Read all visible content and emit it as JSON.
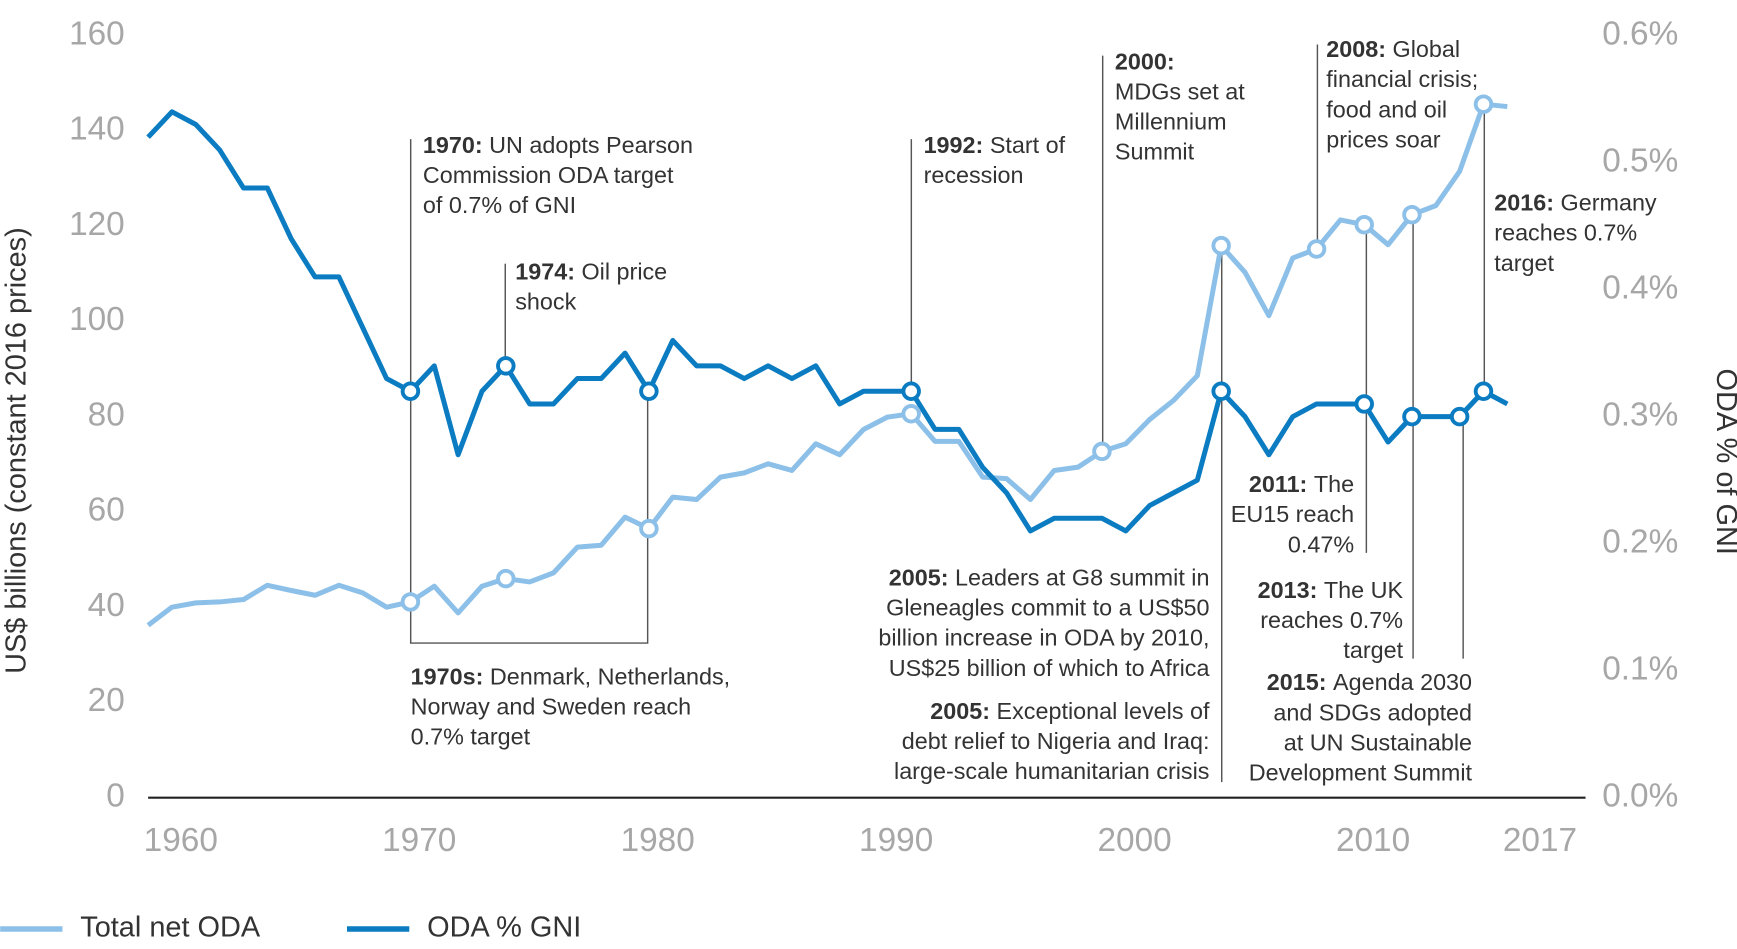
{
  "chart_data": {
    "type": "line",
    "x": [
      1960,
      1961,
      1962,
      1963,
      1964,
      1965,
      1966,
      1967,
      1968,
      1969,
      1970,
      1971,
      1972,
      1973,
      1974,
      1975,
      1976,
      1977,
      1978,
      1979,
      1980,
      1981,
      1982,
      1983,
      1984,
      1985,
      1986,
      1987,
      1988,
      1989,
      1990,
      1991,
      1992,
      1993,
      1994,
      1995,
      1996,
      1997,
      1998,
      1999,
      2000,
      2001,
      2002,
      2003,
      2004,
      2005,
      2006,
      2007,
      2008,
      2009,
      2010,
      2011,
      2012,
      2013,
      2014,
      2015,
      2016,
      2017
    ],
    "xlim": [
      1960,
      2020
    ],
    "xticks": [
      1960,
      1970,
      1980,
      1990,
      2000,
      2010,
      2017
    ],
    "ylim": [
      0,
      160
    ],
    "yticks": [
      0,
      20,
      40,
      60,
      80,
      100,
      120,
      140,
      160
    ],
    "y2lim": [
      0,
      0.6
    ],
    "y2ticks": [
      {
        "value": 0,
        "label": "0.0%"
      },
      {
        "value": 0.1,
        "label": "0.1%"
      },
      {
        "value": 0.2,
        "label": "0.2%"
      },
      {
        "value": 0.3,
        "label": "0.3%"
      },
      {
        "value": 0.4,
        "label": "0.4%"
      },
      {
        "value": 0.5,
        "label": "0.5%"
      },
      {
        "value": 0.6,
        "label": "0.6%"
      }
    ],
    "y_label": "US$ billions (constant 2016 prices)",
    "y2_label": "ODA % of GNI",
    "grid": false,
    "legend": "bottom-left",
    "series": [
      {
        "name": "Total net ODA",
        "color": "#8cc0e8",
        "values": [
          36.2,
          40,
          40.9,
          41.1,
          41.6,
          44.6,
          43.5,
          42.5,
          44.6,
          43,
          40,
          41.1,
          44.4,
          38.8,
          44.4,
          46,
          45.3,
          47.2,
          52.6,
          53,
          58.9,
          56.5,
          63.1,
          62.6,
          67.3,
          68.2,
          70.1,
          68.7,
          74.3,
          72,
          77.3,
          79.9,
          80.6,
          74.8,
          74.8,
          67.3,
          67,
          62.6,
          68.7,
          69.4,
          72.7,
          74.3,
          79.4,
          83.4,
          88.6,
          115.9,
          110.3,
          101.2,
          113.3,
          115.2,
          121.3,
          120.3,
          116.1,
          122.4,
          124.3,
          131.5,
          145.6,
          145.1
        ]
      },
      {
        "name": "ODA % GNI",
        "color": "#0b7cc1",
        "axis": "y2",
        "values": [
          0.52,
          0.54,
          0.53,
          0.51,
          0.48,
          0.48,
          0.44,
          0.41,
          0.41,
          0.37,
          0.33,
          0.32,
          0.34,
          0.27,
          0.32,
          0.34,
          0.31,
          0.31,
          0.33,
          0.33,
          0.35,
          0.32,
          0.36,
          0.34,
          0.34,
          0.33,
          0.34,
          0.33,
          0.34,
          0.31,
          0.32,
          0.32,
          0.32,
          0.29,
          0.29,
          0.26,
          0.24,
          0.21,
          0.22,
          0.22,
          0.22,
          0.21,
          0.23,
          0.24,
          0.25,
          0.32,
          0.3,
          0.27,
          0.3,
          0.31,
          0.31,
          0.31,
          0.28,
          0.3,
          0.3,
          0.3,
          0.32,
          0.31
        ]
      }
    ],
    "annotations": [
      {
        "lead": "1970:",
        "text": [
          "UN adopts Pearson",
          "Commission ODA target",
          "of 0.7% of GNI"
        ]
      },
      {
        "lead": "1974:",
        "text": [
          "Oil price",
          "shock"
        ]
      },
      {
        "lead": "1992:",
        "text": [
          "Start of",
          "recession"
        ]
      },
      {
        "lead": "2000:",
        "text": [
          "",
          "MDGs set at",
          "Millennium",
          "Summit"
        ]
      },
      {
        "lead": "2008:",
        "text": [
          "Global",
          "financial crisis;",
          "food and oil",
          "prices soar"
        ]
      },
      {
        "lead": "2016:",
        "text": [
          "Germany",
          "reaches 0.7%",
          "target"
        ]
      },
      {
        "lead": "1970s:",
        "text": [
          "Denmark, Netherlands,",
          "Norway and Sweden reach",
          "0.7% target"
        ]
      },
      {
        "lead": "2005:",
        "text": [
          "Leaders at G8 summit in",
          "Gleneagles commit to a US$50",
          "billion increase in ODA by 2010,",
          "US$25 billion of which to Africa"
        ]
      },
      {
        "lead": "2005:",
        "text": [
          "Exceptional levels of",
          "debt relief to Nigeria and Iraq:",
          "large-scale humanitarian crisis"
        ]
      },
      {
        "lead": "2011:",
        "text": [
          "The",
          "EU15 reach",
          "0.47%"
        ]
      },
      {
        "lead": "2013:",
        "text": [
          "The UK",
          "reaches 0.7%",
          "target"
        ]
      },
      {
        "lead": "2015:",
        "text": [
          "Agenda 2030",
          "and SDGs adopted",
          "at UN Sustainable",
          "Development Summit"
        ]
      }
    ]
  }
}
